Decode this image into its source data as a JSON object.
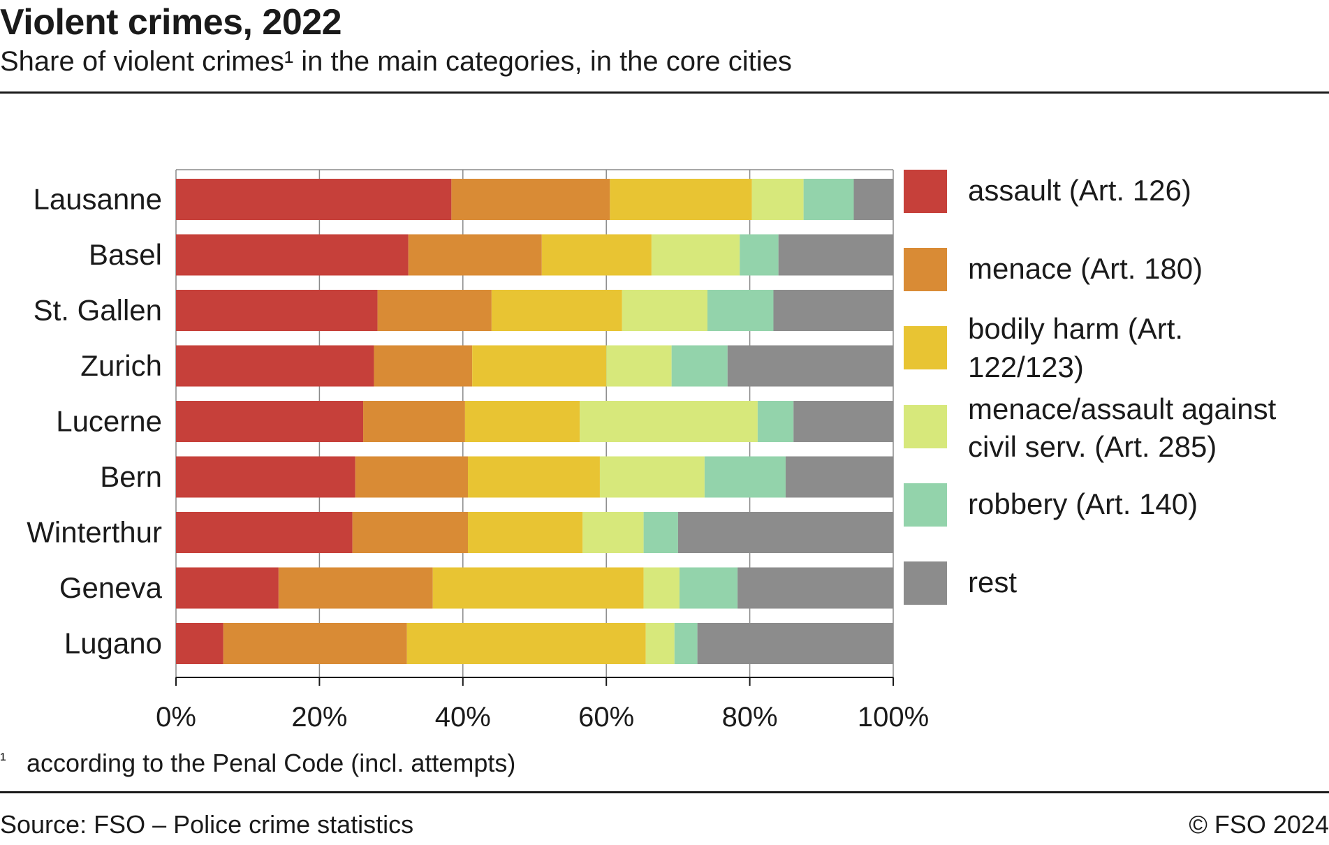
{
  "header": {
    "title": "Violent crimes, 2022",
    "subtitle": "Share of violent crimes¹ in the main categories, in the core cities"
  },
  "footer": {
    "footnote_mark": "¹",
    "footnote": "according to the Penal Code (incl. attempts)",
    "source": "Source: FSO – Police crime statistics",
    "copyright": "© FSO 2024"
  },
  "chart_data": {
    "type": "bar",
    "orientation": "horizontal",
    "stacked": true,
    "categories": [
      "Lausanne",
      "Basel",
      "St. Gallen",
      "Zurich",
      "Lucerne",
      "Bern",
      "Winterthur",
      "Geneva",
      "Lugano"
    ],
    "series": [
      {
        "name": "assault (Art. 126)",
        "color": "#c6403a",
        "values": [
          38.4,
          32.4,
          28.1,
          27.6,
          26.1,
          25.0,
          24.6,
          14.3,
          6.6
        ]
      },
      {
        "name": "menace (Art. 180)",
        "color": "#d98b35",
        "values": [
          22.1,
          18.6,
          15.9,
          13.7,
          14.2,
          15.7,
          16.1,
          21.5,
          25.6
        ]
      },
      {
        "name": "bodily harm (Art. 122/123)",
        "color": "#e8c433",
        "values": [
          19.8,
          15.3,
          18.2,
          18.7,
          16.0,
          18.4,
          16.0,
          29.4,
          33.3
        ]
      },
      {
        "name": "menace/assault against civil serv. (Art. 285)",
        "color": "#d7e87b",
        "values": [
          7.2,
          12.3,
          11.9,
          9.1,
          24.8,
          14.6,
          8.5,
          5.0,
          4.0
        ]
      },
      {
        "name": "robbery (Art. 140)",
        "color": "#93d3ab",
        "values": [
          7.0,
          5.4,
          9.2,
          7.8,
          5.0,
          11.3,
          4.8,
          8.1,
          3.2
        ]
      },
      {
        "name": "rest",
        "color": "#8c8c8c",
        "values": [
          5.5,
          16.0,
          16.7,
          23.1,
          13.9,
          15.0,
          30.0,
          21.7,
          27.3
        ]
      }
    ],
    "xlim": [
      0,
      100
    ],
    "x_ticks": [
      "0%",
      "20%",
      "40%",
      "60%",
      "80%",
      "100%"
    ],
    "grid": true,
    "legend_position": "right"
  }
}
